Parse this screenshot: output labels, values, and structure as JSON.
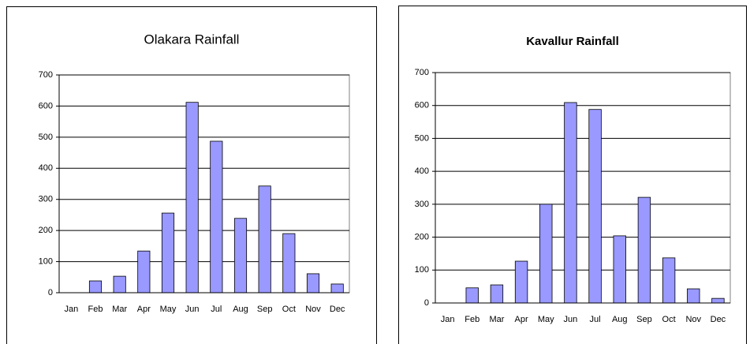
{
  "chart_data": [
    {
      "type": "bar",
      "title": "Olakara Rainfall",
      "categories": [
        "Jan",
        "Feb",
        "Mar",
        "Apr",
        "May",
        "Jun",
        "Jul",
        "Aug",
        "Sep",
        "Oct",
        "Nov",
        "Dec"
      ],
      "values": [
        0,
        38,
        53,
        134,
        256,
        612,
        487,
        239,
        343,
        190,
        61,
        28
      ],
      "color": "#9999ff",
      "ylim": [
        0,
        700
      ],
      "yticks": [
        0,
        100,
        200,
        300,
        400,
        500,
        600,
        700
      ],
      "grid": true
    },
    {
      "type": "bar",
      "title": "Kavallur Rainfall",
      "categories": [
        "Jan",
        "Feb",
        "Mar",
        "Apr",
        "May",
        "Jun",
        "Jul",
        "Aug",
        "Sep",
        "Oct",
        "Nov",
        "Dec"
      ],
      "values": [
        0,
        46,
        55,
        127,
        300,
        609,
        588,
        204,
        321,
        137,
        43,
        14
      ],
      "color": "#9999ff",
      "ylim": [
        0,
        700
      ],
      "yticks": [
        0,
        100,
        200,
        300,
        400,
        500,
        600,
        700
      ],
      "grid": true
    }
  ]
}
